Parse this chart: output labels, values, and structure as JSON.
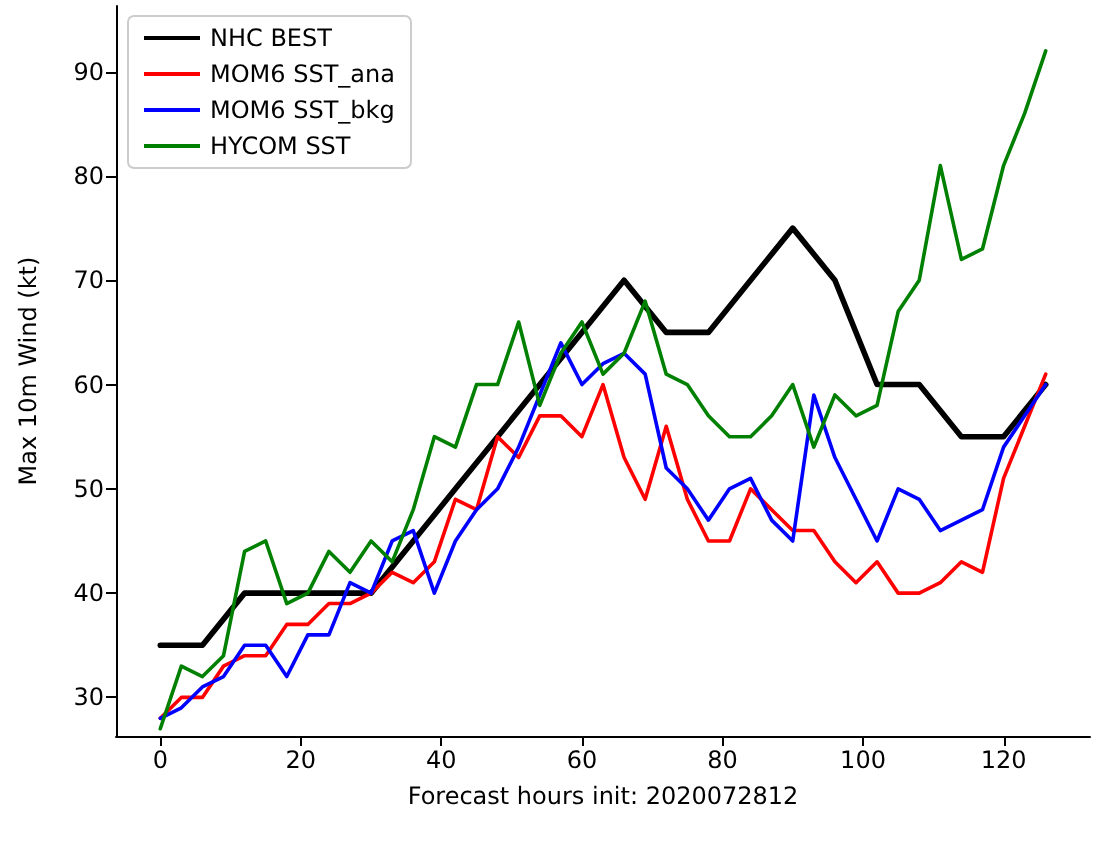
{
  "chart_data": {
    "type": "line",
    "xlabel": "Forecast hours init: 2020072812",
    "ylabel": "Max 10m Wind (kt)",
    "xlim": [
      -6.3,
      132.3
    ],
    "xticks": [
      0,
      20,
      40,
      60,
      80,
      100,
      120
    ],
    "ylim": [
      26.3,
      96.3
    ],
    "yticks": [
      30,
      40,
      50,
      60,
      70,
      80,
      90
    ],
    "grid": false,
    "legend": "top left",
    "marker": "none",
    "line_style": "solid",
    "series": [
      {
        "name": "NHC BEST",
        "color": "#000000",
        "x": [
          0,
          6,
          12,
          18,
          24,
          30,
          36,
          42,
          48,
          54,
          60,
          66,
          72,
          78,
          84,
          90,
          96,
          102,
          108,
          114,
          120,
          126
        ],
        "values": [
          35,
          35,
          40,
          40,
          40,
          40,
          45,
          50,
          55,
          60,
          65,
          70,
          65,
          65,
          70,
          75,
          70,
          60,
          60,
          55,
          55,
          60
        ]
      },
      {
        "name": "MOM6 SST_ana",
        "color": "#ff0000",
        "x": [
          0,
          3,
          6,
          9,
          12,
          15,
          18,
          21,
          24,
          27,
          30,
          33,
          36,
          39,
          42,
          45,
          48,
          51,
          54,
          57,
          60,
          63,
          66,
          69,
          72,
          75,
          78,
          81,
          84,
          87,
          90,
          93,
          96,
          99,
          102,
          105,
          108,
          111,
          114,
          117,
          120,
          123,
          126
        ],
        "values": [
          28,
          30,
          30,
          33,
          34,
          34,
          37,
          37,
          39,
          39,
          40,
          42,
          41,
          43,
          49,
          48,
          55,
          53,
          57,
          57,
          55,
          60,
          53,
          49,
          56,
          49,
          45,
          45,
          50,
          48,
          46,
          46,
          43,
          41,
          43,
          40,
          40,
          41,
          43,
          42,
          51,
          56,
          61
        ]
      },
      {
        "name": "MOM6 SST_bkg",
        "color": "#0000ff",
        "x": [
          0,
          3,
          6,
          9,
          12,
          15,
          18,
          21,
          24,
          27,
          30,
          33,
          36,
          39,
          42,
          45,
          48,
          51,
          54,
          57,
          60,
          63,
          66,
          69,
          72,
          75,
          78,
          81,
          84,
          87,
          90,
          93,
          96,
          99,
          102,
          105,
          108,
          111,
          114,
          117,
          120,
          123,
          126
        ],
        "values": [
          28,
          29,
          31,
          32,
          35,
          35,
          32,
          36,
          36,
          41,
          40,
          45,
          46,
          40,
          45,
          48,
          50,
          54,
          59,
          64,
          60,
          62,
          63,
          61,
          52,
          50,
          47,
          50,
          51,
          47,
          45,
          59,
          53,
          49,
          45,
          50,
          49,
          46,
          47,
          48,
          54,
          57,
          60
        ]
      },
      {
        "name": "HYCOM SST",
        "color": "#008000",
        "x": [
          0,
          3,
          6,
          9,
          12,
          15,
          18,
          21,
          24,
          27,
          30,
          33,
          36,
          39,
          42,
          45,
          48,
          51,
          54,
          57,
          60,
          63,
          66,
          69,
          72,
          75,
          78,
          81,
          84,
          87,
          90,
          93,
          96,
          99,
          102,
          105,
          108,
          111,
          114,
          117,
          120,
          123,
          126
        ],
        "values": [
          27,
          33,
          32,
          34,
          44,
          45,
          39,
          40,
          44,
          42,
          45,
          43,
          48,
          55,
          54,
          60,
          60,
          66,
          58,
          63,
          66,
          61,
          63,
          68,
          61,
          60,
          57,
          55,
          55,
          57,
          60,
          54,
          59,
          57,
          58,
          67,
          70,
          81,
          72,
          73,
          81,
          86,
          92
        ]
      }
    ]
  }
}
